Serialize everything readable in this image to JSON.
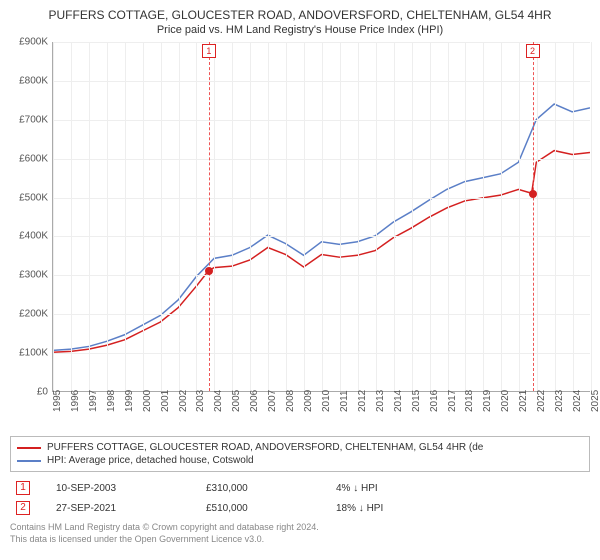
{
  "title": "PUFFERS COTTAGE, GLOUCESTER ROAD, ANDOVERSFORD, CHELTENHAM, GL54 4HR",
  "subtitle": "Price paid vs. HM Land Registry's House Price Index (HPI)",
  "chart": {
    "type": "line",
    "background_color": "#ffffff",
    "grid_color": "#eeeeee",
    "axis_color": "#aaaaaa",
    "y": {
      "min": 0,
      "max": 900,
      "step": 100,
      "prefix": "£",
      "suffix": "K",
      "ticks": [
        "£0",
        "£100K",
        "£200K",
        "£300K",
        "£400K",
        "£500K",
        "£600K",
        "£700K",
        "£800K",
        "£900K"
      ]
    },
    "x": {
      "min": 1995,
      "max": 2025,
      "step": 1,
      "ticks": [
        "1995",
        "1996",
        "1997",
        "1998",
        "1999",
        "2000",
        "2001",
        "2002",
        "2003",
        "2004",
        "2005",
        "2006",
        "2007",
        "2008",
        "2009",
        "2010",
        "2011",
        "2012",
        "2013",
        "2014",
        "2015",
        "2016",
        "2017",
        "2018",
        "2019",
        "2020",
        "2021",
        "2022",
        "2023",
        "2024",
        "2025"
      ]
    },
    "series": [
      {
        "name": "PUFFERS COTTAGE, GLOUCESTER ROAD, ANDOVERSFORD, CHELTENHAM, GL54 4HR (de",
        "color": "#d42020",
        "line_width": 1.5,
        "points": [
          [
            1995,
            100
          ],
          [
            1996,
            102
          ],
          [
            1997,
            108
          ],
          [
            1998,
            118
          ],
          [
            1999,
            132
          ],
          [
            2000,
            155
          ],
          [
            2001,
            178
          ],
          [
            2002,
            215
          ],
          [
            2003,
            270
          ],
          [
            2003.69,
            310
          ],
          [
            2004,
            318
          ],
          [
            2005,
            322
          ],
          [
            2006,
            338
          ],
          [
            2007,
            370
          ],
          [
            2008,
            352
          ],
          [
            2009,
            320
          ],
          [
            2010,
            352
          ],
          [
            2011,
            345
          ],
          [
            2012,
            350
          ],
          [
            2013,
            362
          ],
          [
            2014,
            395
          ],
          [
            2015,
            420
          ],
          [
            2016,
            448
          ],
          [
            2017,
            472
          ],
          [
            2018,
            490
          ],
          [
            2019,
            498
          ],
          [
            2020,
            505
          ],
          [
            2021,
            520
          ],
          [
            2021.74,
            510
          ],
          [
            2022,
            590
          ],
          [
            2023,
            620
          ],
          [
            2024,
            610
          ],
          [
            2025,
            615
          ]
        ]
      },
      {
        "name": "HPI: Average price, detached house, Cotswold",
        "color": "#5b7fc7",
        "line_width": 1.5,
        "points": [
          [
            1995,
            105
          ],
          [
            1996,
            108
          ],
          [
            1997,
            115
          ],
          [
            1998,
            128
          ],
          [
            1999,
            145
          ],
          [
            2000,
            170
          ],
          [
            2001,
            195
          ],
          [
            2002,
            235
          ],
          [
            2003,
            295
          ],
          [
            2004,
            342
          ],
          [
            2005,
            350
          ],
          [
            2006,
            370
          ],
          [
            2007,
            402
          ],
          [
            2008,
            380
          ],
          [
            2009,
            350
          ],
          [
            2010,
            385
          ],
          [
            2011,
            378
          ],
          [
            2012,
            385
          ],
          [
            2013,
            400
          ],
          [
            2014,
            435
          ],
          [
            2015,
            462
          ],
          [
            2016,
            492
          ],
          [
            2017,
            520
          ],
          [
            2018,
            540
          ],
          [
            2019,
            550
          ],
          [
            2020,
            560
          ],
          [
            2021,
            590
          ],
          [
            2022,
            700
          ],
          [
            2023,
            740
          ],
          [
            2024,
            720
          ],
          [
            2025,
            730
          ]
        ]
      }
    ],
    "markers": [
      {
        "label": "1",
        "year": 2003.69,
        "value": 310,
        "point_color": "#d42020"
      },
      {
        "label": "2",
        "year": 2021.74,
        "value": 510,
        "point_color": "#d42020"
      }
    ],
    "marker_line_color": "#e55",
    "label_fontsize": 10
  },
  "legend": {
    "rows": [
      {
        "color": "#d42020",
        "text": "PUFFERS COTTAGE, GLOUCESTER ROAD, ANDOVERSFORD, CHELTENHAM, GL54 4HR (de"
      },
      {
        "color": "#5b7fc7",
        "text": "HPI: Average price, detached house, Cotswold"
      }
    ]
  },
  "transactions": [
    {
      "marker": "1",
      "date": "10-SEP-2003",
      "price": "£310,000",
      "delta": "4% ↓ HPI"
    },
    {
      "marker": "2",
      "date": "27-SEP-2021",
      "price": "£510,000",
      "delta": "18% ↓ HPI"
    }
  ],
  "copyright": {
    "line1": "Contains HM Land Registry data © Crown copyright and database right 2024.",
    "line2": "This data is licensed under the Open Government Licence v3.0."
  }
}
